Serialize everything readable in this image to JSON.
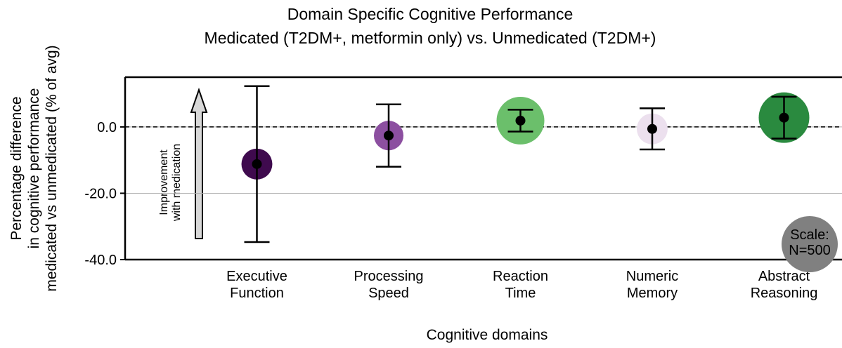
{
  "chart_data": {
    "type": "bubble-errorbar",
    "title": [
      "Domain Specific Cognitive Performance",
      "Medicated (T2DM+, metformin only) vs. Unmedicated (T2DM+)"
    ],
    "y_label": [
      "Percentage difference",
      "in cognitive performance",
      "medicated vs unmedicated (% of avg)"
    ],
    "x_label": "Cognitive domains",
    "categories": [
      [
        "Executive",
        "Function"
      ],
      [
        "Processing",
        "Speed"
      ],
      [
        "Reaction",
        "Time"
      ],
      [
        "Numeric",
        "Memory"
      ],
      [
        "Abstract",
        "Reasoning"
      ]
    ],
    "values": [
      -11.2,
      -2.6,
      1.9,
      -0.6,
      2.8
    ],
    "errors": [
      23.5,
      9.4,
      3.3,
      6.2,
      6.3
    ],
    "sizes": [
      151,
      138,
      361,
      151,
      405
    ],
    "colors": [
      "#3f0a4e",
      "#8c4fa0",
      "#6bbf6b",
      "#ece0ee",
      "#2a8a3f"
    ],
    "ylim": [
      -40,
      15
    ],
    "yticks": [
      {
        "value": 0,
        "label": "0.0"
      },
      {
        "value": -20,
        "label": "-20.0"
      },
      {
        "value": -40,
        "label": "-40.0"
      }
    ],
    "grid": true,
    "reference_line": 0,
    "annotation": [
      "Improvement",
      "with medication"
    ],
    "scale_label": [
      "Scale:",
      "N=500"
    ],
    "scale_size": 500
  }
}
